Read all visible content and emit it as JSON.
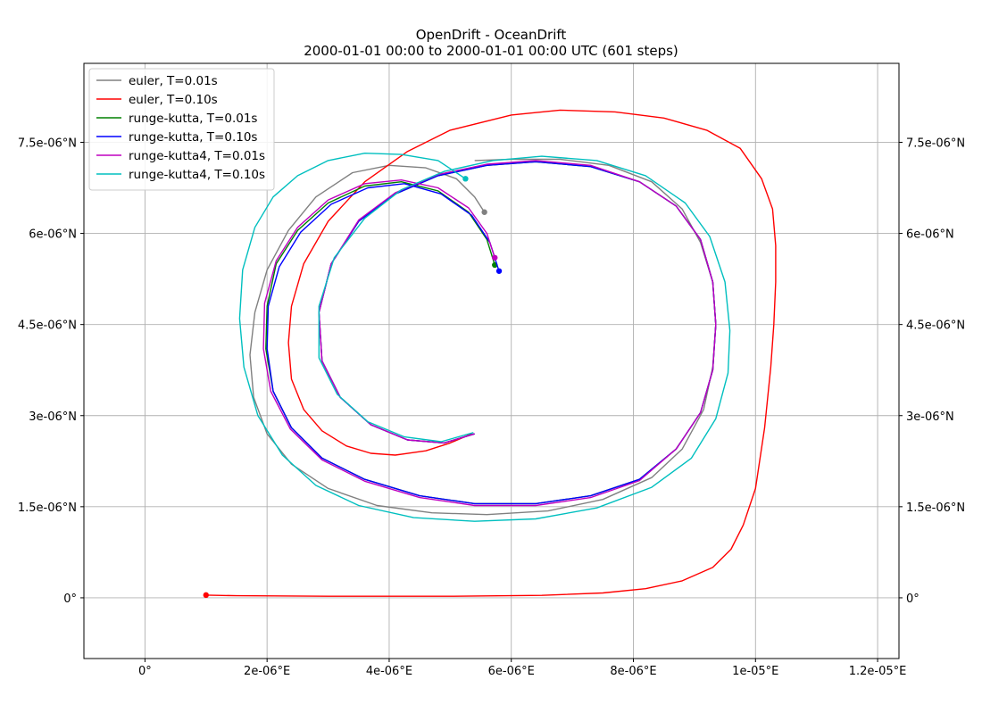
{
  "chart_data": {
    "type": "line",
    "title": "OpenDrift - OceanDrift",
    "subtitle": "2000-01-01 00:00 to 2000-01-01 00:00 UTC (601 steps)",
    "xlabel": "",
    "ylabel": "",
    "xlim": [
      -1e-06,
      1.235e-05
    ],
    "ylim": [
      -1e-06,
      8.8e-06
    ],
    "grid": true,
    "legend_position": "top-left",
    "x_ticks": [
      {
        "value": 0,
        "label": "0°"
      },
      {
        "value": 2e-06,
        "label": "2e-06°E"
      },
      {
        "value": 4e-06,
        "label": "4e-06°E"
      },
      {
        "value": 6e-06,
        "label": "6e-06°E"
      },
      {
        "value": 8e-06,
        "label": "8e-06°E"
      },
      {
        "value": 1e-05,
        "label": "1e-05°E"
      },
      {
        "value": 1.2e-05,
        "label": "1.2e-05°E"
      }
    ],
    "y_ticks": [
      {
        "value": 0,
        "label": "0°"
      },
      {
        "value": 1.5e-06,
        "label": "1.5e-06°N"
      },
      {
        "value": 3e-06,
        "label": "3e-06°N"
      },
      {
        "value": 4.5e-06,
        "label": "4.5e-06°N"
      },
      {
        "value": 6e-06,
        "label": "6e-06°N"
      },
      {
        "value": 7.5e-06,
        "label": "7.5e-06°N"
      }
    ],
    "series": [
      {
        "name": "euler, T=0.01s",
        "color": "#808080",
        "x": [
          5.56e-06,
          5.4e-06,
          5.1e-06,
          4.6e-06,
          4e-06,
          3.4e-06,
          2.8e-06,
          2.35e-06,
          2e-06,
          1.8e-06,
          1.72e-06,
          1.78e-06,
          2e-06,
          2.4e-06,
          3e-06,
          3.8e-06,
          4.7e-06,
          5.6e-06,
          6.6e-06,
          7.5e-06,
          8.3e-06,
          8.8e-06,
          9.15e-06,
          9.3e-06,
          9.35e-06,
          9.3e-06,
          9.1e-06,
          8.8e-06,
          8.3e-06,
          7.6e-06,
          6.8e-06,
          6e-06,
          5.4e-06
        ],
        "y": [
          6.35e-06,
          6.6e-06,
          6.9e-06,
          7.08e-06,
          7.12e-06,
          7e-06,
          6.6e-06,
          6.05e-06,
          5.4e-06,
          4.7e-06,
          4e-06,
          3.3e-06,
          2.7e-06,
          2.2e-06,
          1.8e-06,
          1.52e-06,
          1.4e-06,
          1.37e-06,
          1.43e-06,
          1.62e-06,
          1.98e-06,
          2.45e-06,
          3.1e-06,
          3.8e-06,
          4.5e-06,
          5.2e-06,
          5.85e-06,
          6.4e-06,
          6.85e-06,
          7.12e-06,
          7.22e-06,
          7.22e-06,
          7.2e-06
        ]
      },
      {
        "name": "euler, T=0.10s",
        "color": "#ff0000",
        "x": [
          1e-06,
          1.5e-06,
          3e-06,
          5e-06,
          6.5e-06,
          7.5e-06,
          8.2e-06,
          8.8e-06,
          9.3e-06,
          9.6e-06,
          9.8e-06,
          1e-05,
          1.015e-05,
          1.025e-05,
          1.03e-05,
          1.033e-05,
          1.033e-05,
          1.028e-05,
          1.01e-05,
          9.75e-06,
          9.2e-06,
          8.5e-06,
          7.7e-06,
          6.8e-06,
          6e-06,
          5e-06,
          4.3e-06,
          3.6e-06,
          3e-06,
          2.6e-06,
          2.4e-06,
          2.35e-06,
          2.4e-06,
          2.6e-06,
          2.9e-06,
          3.3e-06,
          3.7e-06,
          4.1e-06,
          4.6e-06,
          5e-06,
          5.35e-06
        ],
        "y": [
          4.5e-08,
          3.5e-08,
          2.5e-08,
          2.5e-08,
          4e-08,
          8e-08,
          1.5e-07,
          2.8e-07,
          5e-07,
          8e-07,
          1.2e-06,
          1.8e-06,
          2.8e-06,
          3.8e-06,
          4.5e-06,
          5.2e-06,
          5.8e-06,
          6.4e-06,
          6.9e-06,
          7.4e-06,
          7.7e-06,
          7.9e-06,
          8e-06,
          8.03e-06,
          7.95e-06,
          7.7e-06,
          7.35e-06,
          6.85e-06,
          6.2e-06,
          5.5e-06,
          4.8e-06,
          4.2e-06,
          3.6e-06,
          3.1e-06,
          2.75e-06,
          2.5e-06,
          2.38e-06,
          2.35e-06,
          2.42e-06,
          2.55e-06,
          2.7e-06
        ]
      },
      {
        "name": "runge-kutta, T=0.01s",
        "color": "#008000",
        "x": [
          5.73e-06,
          5.6e-06,
          5.3e-06,
          4.8e-06,
          4.2e-06,
          3.6e-06,
          3e-06,
          2.5e-06,
          2.15e-06,
          2e-06,
          1.98e-06,
          2.1e-06,
          2.4e-06,
          2.9e-06,
          3.6e-06,
          4.5e-06,
          5.4e-06,
          6.4e-06,
          7.3e-06,
          8.1e-06,
          8.7e-06,
          9.1e-06,
          9.3e-06,
          9.35e-06,
          9.3e-06,
          9.1e-06,
          8.7e-06,
          8.1e-06,
          7.3e-06,
          6.4e-06,
          5.6e-06,
          4.8e-06,
          4.1e-06,
          3.5e-06,
          3.05e-06,
          2.85e-06,
          2.9e-06,
          3.2e-06,
          3.7e-06,
          4.3e-06,
          4.9e-06,
          5.4e-06
        ],
        "y": [
          5.48e-06,
          5.9e-06,
          6.35e-06,
          6.7e-06,
          6.85e-06,
          6.78e-06,
          6.5e-06,
          6.05e-06,
          5.5e-06,
          4.8e-06,
          4.1e-06,
          3.4e-06,
          2.8e-06,
          2.3e-06,
          1.95e-06,
          1.68e-06,
          1.55e-06,
          1.55e-06,
          1.68e-06,
          1.95e-06,
          2.45e-06,
          3.05e-06,
          3.75e-06,
          4.5e-06,
          5.2e-06,
          5.9e-06,
          6.45e-06,
          6.85e-06,
          7.1e-06,
          7.18e-06,
          7.12e-06,
          6.95e-06,
          6.65e-06,
          6.2e-06,
          5.5e-06,
          4.7e-06,
          3.9e-06,
          3.3e-06,
          2.85e-06,
          2.6e-06,
          2.55e-06,
          2.7e-06
        ]
      },
      {
        "name": "runge-kutta, T=0.10s",
        "color": "#0000ff",
        "x": [
          5.8e-06,
          5.65e-06,
          5.35e-06,
          4.85e-06,
          4.25e-06,
          3.65e-06,
          3.05e-06,
          2.55e-06,
          2.2e-06,
          2.02e-06,
          2e-06,
          2.1e-06,
          2.4e-06,
          2.9e-06,
          3.6e-06,
          4.5e-06,
          5.4e-06,
          6.4e-06,
          7.3e-06,
          8.1e-06,
          8.7e-06,
          9.1e-06,
          9.3e-06,
          9.35e-06,
          9.3e-06,
          9.1e-06,
          8.7e-06,
          8.1e-06,
          7.3e-06,
          6.4e-06,
          5.6e-06,
          4.8e-06,
          4.1e-06,
          3.5e-06,
          3.05e-06,
          2.85e-06,
          2.9e-06,
          3.2e-06,
          3.7e-06,
          4.3e-06,
          4.9e-06,
          5.4e-06
        ],
        "y": [
          5.38e-06,
          5.85e-06,
          6.3e-06,
          6.65e-06,
          6.82e-06,
          6.75e-06,
          6.48e-06,
          6.02e-06,
          5.45e-06,
          4.8e-06,
          4.1e-06,
          3.4e-06,
          2.8e-06,
          2.3e-06,
          1.95e-06,
          1.68e-06,
          1.55e-06,
          1.55e-06,
          1.68e-06,
          1.95e-06,
          2.45e-06,
          3.05e-06,
          3.75e-06,
          4.5e-06,
          5.2e-06,
          5.9e-06,
          6.45e-06,
          6.85e-06,
          7.1e-06,
          7.18e-06,
          7.12e-06,
          6.95e-06,
          6.65e-06,
          6.2e-06,
          5.5e-06,
          4.7e-06,
          3.9e-06,
          3.3e-06,
          2.85e-06,
          2.6e-06,
          2.55e-06,
          2.7e-06
        ]
      },
      {
        "name": "runge-kutta4, T=0.01s",
        "color": "#bf00bf",
        "x": [
          5.73e-06,
          5.6e-06,
          5.3e-06,
          4.8e-06,
          4.2e-06,
          3.6e-06,
          3e-06,
          2.5e-06,
          2.15e-06,
          1.96e-06,
          1.94e-06,
          2.06e-06,
          2.38e-06,
          2.9e-06,
          3.6e-06,
          4.5e-06,
          5.4e-06,
          6.4e-06,
          7.3e-06,
          8.1e-06,
          8.7e-06,
          9.1e-06,
          9.3e-06,
          9.35e-06,
          9.3e-06,
          9.1e-06,
          8.7e-06,
          8.1e-06,
          7.3e-06,
          6.4e-06,
          5.6e-06,
          4.8e-06,
          4.1e-06,
          3.5e-06,
          3.05e-06,
          2.85e-06,
          2.9e-06,
          3.2e-06,
          3.7e-06,
          4.3e-06,
          4.9e-06,
          5.4e-06
        ],
        "y": [
          5.6e-06,
          6e-06,
          6.42e-06,
          6.75e-06,
          6.88e-06,
          6.82e-06,
          6.55e-06,
          6.1e-06,
          5.55e-06,
          4.85e-06,
          4.1e-06,
          3.4e-06,
          2.78e-06,
          2.27e-06,
          1.92e-06,
          1.65e-06,
          1.52e-06,
          1.52e-06,
          1.65e-06,
          1.93e-06,
          2.45e-06,
          3.05e-06,
          3.75e-06,
          4.5e-06,
          5.2e-06,
          5.9e-06,
          6.45e-06,
          6.85e-06,
          7.12e-06,
          7.2e-06,
          7.14e-06,
          6.97e-06,
          6.67e-06,
          6.22e-06,
          5.5e-06,
          4.7e-06,
          3.9e-06,
          3.3e-06,
          2.85e-06,
          2.6e-06,
          2.55e-06,
          2.7e-06
        ]
      },
      {
        "name": "runge-kutta4, T=0.10s",
        "color": "#00bfbf",
        "x": [
          5.25e-06,
          4.8e-06,
          4.2e-06,
          3.6e-06,
          3e-06,
          2.5e-06,
          2.1e-06,
          1.8e-06,
          1.6e-06,
          1.55e-06,
          1.62e-06,
          1.85e-06,
          2.25e-06,
          2.8e-06,
          3.5e-06,
          4.4e-06,
          5.4e-06,
          6.4e-06,
          7.4e-06,
          8.3e-06,
          8.95e-06,
          9.35e-06,
          9.55e-06,
          9.58e-06,
          9.5e-06,
          9.25e-06,
          8.85e-06,
          8.2e-06,
          7.4e-06,
          6.5e-06,
          5.7e-06,
          4.9e-06,
          4.2e-06,
          3.6e-06,
          3.1e-06,
          2.85e-06,
          2.85e-06,
          3.15e-06,
          3.65e-06,
          4.25e-06,
          4.85e-06,
          5.38e-06
        ],
        "y": [
          6.9e-06,
          7.2e-06,
          7.3e-06,
          7.32e-06,
          7.2e-06,
          6.95e-06,
          6.6e-06,
          6.1e-06,
          5.4e-06,
          4.6e-06,
          3.8e-06,
          3e-06,
          2.35e-06,
          1.85e-06,
          1.52e-06,
          1.32e-06,
          1.26e-06,
          1.3e-06,
          1.48e-06,
          1.82e-06,
          2.3e-06,
          2.95e-06,
          3.7e-06,
          4.4e-06,
          5.2e-06,
          5.95e-06,
          6.5e-06,
          6.95e-06,
          7.2e-06,
          7.27e-06,
          7.2e-06,
          7.02e-06,
          6.72e-06,
          6.25e-06,
          5.6e-06,
          4.8e-06,
          3.95e-06,
          3.35e-06,
          2.9e-06,
          2.65e-06,
          2.57e-06,
          2.72e-06
        ]
      }
    ]
  }
}
